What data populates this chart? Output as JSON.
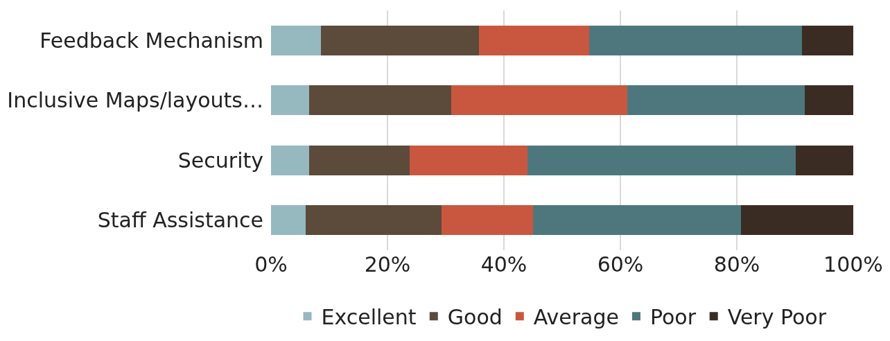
{
  "chart_data": {
    "type": "bar",
    "orientation": "horizontal",
    "stacked": true,
    "categories": [
      "Feedback Mechanism",
      "Inclusive Maps/layouts…",
      "Security",
      "Staff Assistance"
    ],
    "series": [
      {
        "name": "Excellent",
        "color": "#96b8bf",
        "values": [
          8.6,
          6.5,
          6.5,
          6.0
        ]
      },
      {
        "name": "Good",
        "color": "#5c4a3b",
        "values": [
          27.1,
          24.4,
          17.3,
          23.3
        ]
      },
      {
        "name": "Average",
        "color": "#c9573f",
        "values": [
          18.9,
          30.3,
          20.2,
          15.7
        ]
      },
      {
        "name": "Poor",
        "color": "#4d777d",
        "values": [
          36.6,
          30.5,
          46.1,
          35.7
        ]
      },
      {
        "name": "Very Poor",
        "color": "#3b2c23",
        "values": [
          8.8,
          8.3,
          9.9,
          19.3
        ]
      }
    ],
    "xlim": [
      0,
      100
    ],
    "xticks": [
      {
        "value": 0,
        "label": "0%"
      },
      {
        "value": 20,
        "label": "20%"
      },
      {
        "value": 40,
        "label": "40%"
      },
      {
        "value": 60,
        "label": "60%"
      },
      {
        "value": 80,
        "label": "80%"
      },
      {
        "value": 100,
        "label": "100%"
      }
    ],
    "grid": "x",
    "legend": "bottom"
  }
}
